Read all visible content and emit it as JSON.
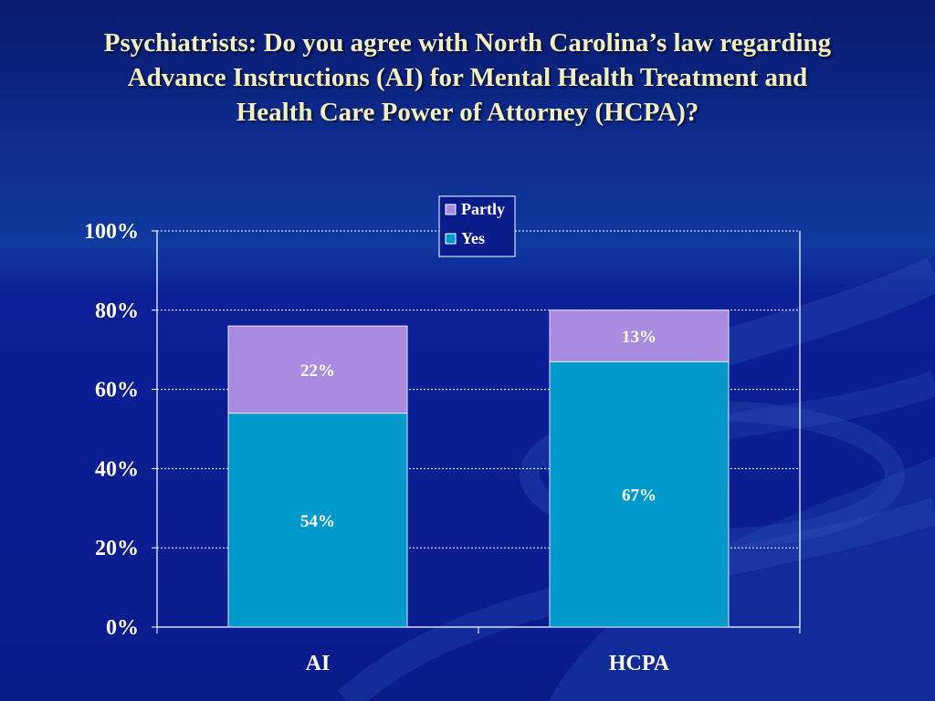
{
  "slide": {
    "title_line1": "Psychiatrists:  Do you agree with North Carolina’s law regarding",
    "title_line2": "Advance Instructions (AI) for Mental Health Treatment and",
    "title_line3": "Health Care Power of Attorney (HCPA)?"
  },
  "colors": {
    "yes": "#0099cc",
    "partly": "#a98be0",
    "title": "#f2efc0"
  },
  "chart_data": {
    "type": "bar",
    "stacked": true,
    "categories": [
      "AI",
      "HCPA"
    ],
    "series": [
      {
        "name": "Yes",
        "values": [
          54,
          67
        ],
        "labels": [
          "54%",
          "67%"
        ]
      },
      {
        "name": "Partly",
        "values": [
          22,
          13
        ],
        "labels": [
          "22%",
          "13%"
        ]
      }
    ],
    "yticks": [
      "0%",
      "20%",
      "40%",
      "60%",
      "80%",
      "100%"
    ],
    "ylim": [
      0,
      100
    ],
    "grid": true,
    "legend": {
      "placement": "top-center",
      "items": [
        "Partly",
        "Yes"
      ]
    }
  }
}
